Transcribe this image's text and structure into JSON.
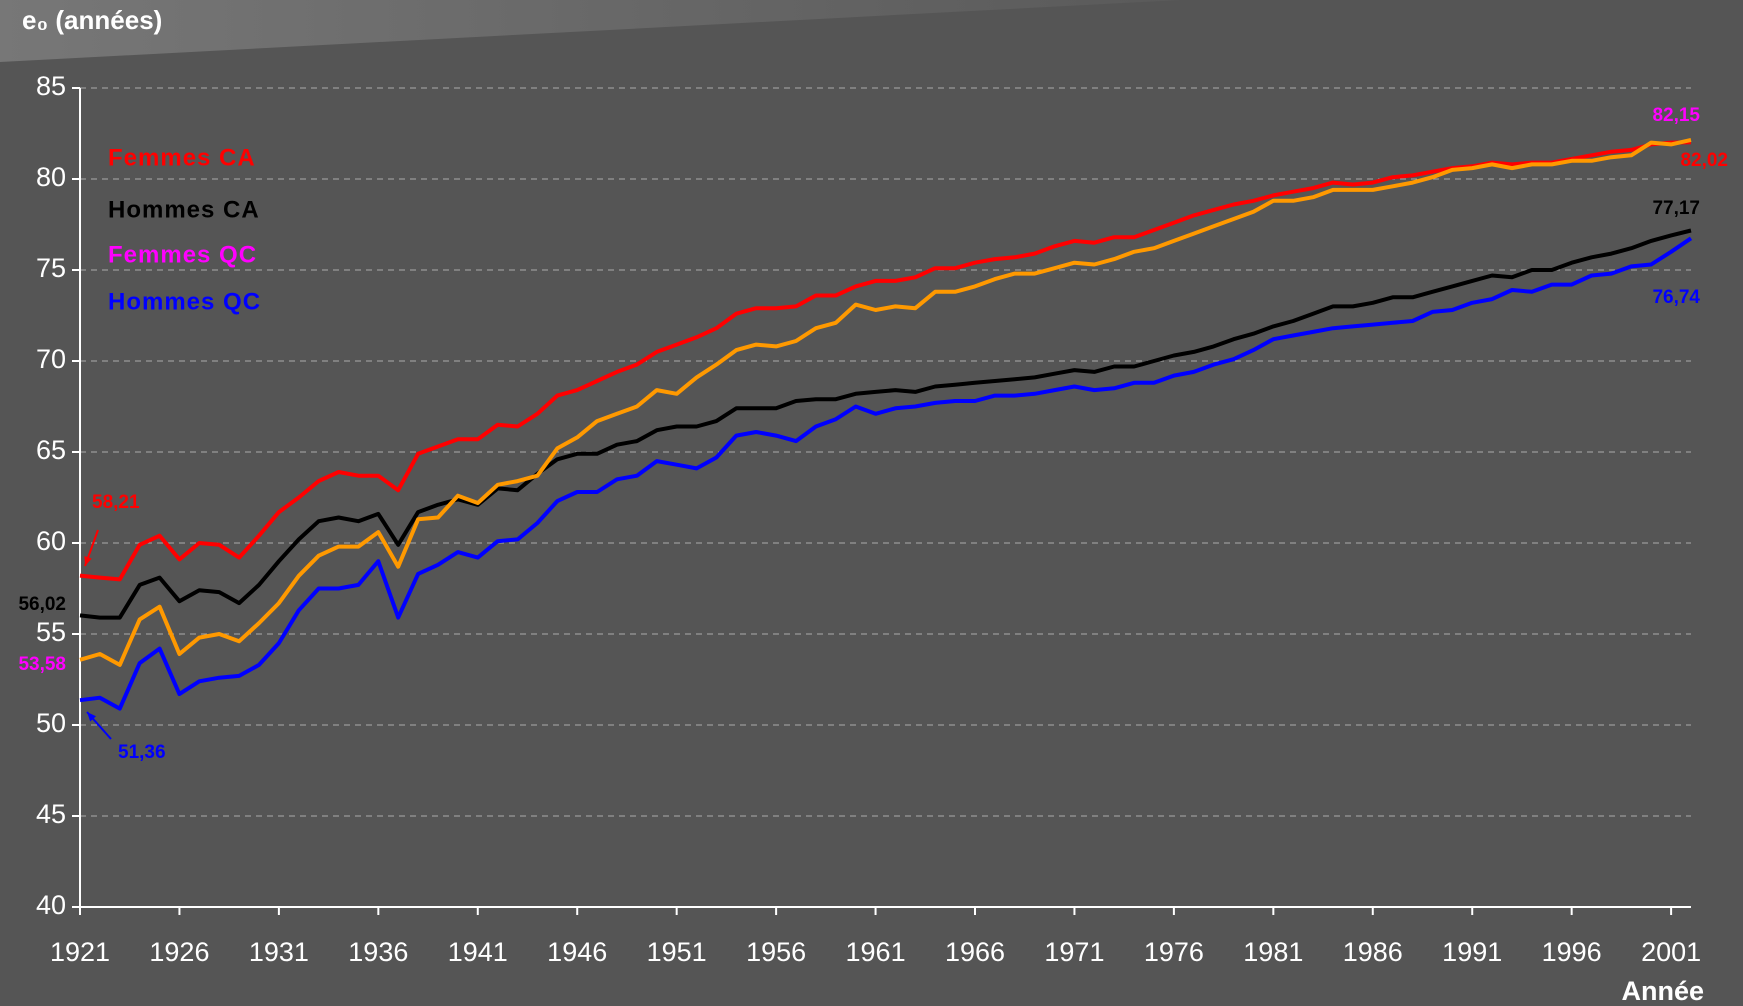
{
  "chart_data": {
    "type": "line",
    "y_label": "e₀ (années)",
    "x_label": "Année",
    "x": [
      1921,
      1922,
      1923,
      1924,
      1925,
      1926,
      1927,
      1928,
      1929,
      1930,
      1931,
      1932,
      1933,
      1934,
      1935,
      1936,
      1937,
      1938,
      1939,
      1940,
      1941,
      1942,
      1943,
      1944,
      1945,
      1946,
      1947,
      1948,
      1949,
      1950,
      1951,
      1952,
      1953,
      1954,
      1955,
      1956,
      1957,
      1958,
      1959,
      1960,
      1961,
      1962,
      1963,
      1964,
      1965,
      1966,
      1967,
      1968,
      1969,
      1970,
      1971,
      1972,
      1973,
      1974,
      1975,
      1976,
      1977,
      1978,
      1979,
      1980,
      1981,
      1982,
      1983,
      1984,
      1985,
      1986,
      1987,
      1988,
      1989,
      1990,
      1991,
      1992,
      1993,
      1994,
      1995,
      1996,
      1997,
      1998,
      1999,
      2000,
      2001,
      2002
    ],
    "xlim": [
      1921,
      2002
    ],
    "xticks": [
      1921,
      1926,
      1931,
      1936,
      1941,
      1946,
      1951,
      1956,
      1961,
      1966,
      1971,
      1976,
      1981,
      1986,
      1991,
      1996,
      2001
    ],
    "ylim": [
      40,
      85
    ],
    "yticks": [
      40,
      45,
      50,
      55,
      60,
      65,
      70,
      75,
      80,
      85
    ],
    "grid": true,
    "series": [
      {
        "name": "Femmes CA",
        "color": "#ff0000",
        "label_color": "#ff0000",
        "values": [
          58.21,
          58.1,
          58.0,
          59.9,
          60.4,
          59.1,
          60.0,
          59.9,
          59.2,
          60.4,
          61.7,
          62.5,
          63.4,
          63.9,
          63.7,
          63.7,
          62.9,
          64.9,
          65.3,
          65.7,
          65.7,
          66.5,
          66.4,
          67.1,
          68.1,
          68.4,
          68.9,
          69.4,
          69.8,
          70.5,
          70.9,
          71.3,
          71.8,
          72.6,
          72.9,
          72.9,
          73.0,
          73.6,
          73.6,
          74.1,
          74.4,
          74.4,
          74.6,
          75.1,
          75.1,
          75.4,
          75.6,
          75.7,
          75.9,
          76.3,
          76.6,
          76.5,
          76.8,
          76.8,
          77.2,
          77.6,
          78.0,
          78.3,
          78.6,
          78.8,
          79.1,
          79.3,
          79.5,
          79.8,
          79.7,
          79.8,
          80.1,
          80.2,
          80.4,
          80.6,
          80.7,
          80.9,
          80.8,
          80.9,
          80.9,
          81.1,
          81.3,
          81.5,
          81.6,
          81.9,
          82.0,
          82.02
        ],
        "value_labels": [
          {
            "index": 0,
            "label": "58,21"
          },
          {
            "index": 81,
            "label": "82,02"
          }
        ]
      },
      {
        "name": "Hommes CA",
        "color": "#000000",
        "label_color": "#000000",
        "values": [
          56.02,
          55.9,
          55.9,
          57.7,
          58.1,
          56.8,
          57.4,
          57.3,
          56.7,
          57.7,
          59.0,
          60.2,
          61.2,
          61.4,
          61.2,
          61.6,
          59.9,
          61.7,
          62.1,
          62.4,
          62.1,
          63.0,
          62.9,
          63.8,
          64.6,
          64.9,
          64.9,
          65.4,
          65.6,
          66.2,
          66.4,
          66.4,
          66.7,
          67.4,
          67.4,
          67.4,
          67.8,
          67.9,
          67.9,
          68.2,
          68.3,
          68.4,
          68.3,
          68.6,
          68.7,
          68.8,
          68.9,
          69.0,
          69.1,
          69.3,
          69.5,
          69.4,
          69.7,
          69.7,
          70.0,
          70.3,
          70.5,
          70.8,
          71.2,
          71.5,
          71.9,
          72.2,
          72.6,
          73.0,
          73.0,
          73.2,
          73.5,
          73.5,
          73.8,
          74.1,
          74.4,
          74.7,
          74.6,
          75.0,
          75.0,
          75.4,
          75.7,
          75.9,
          76.2,
          76.6,
          76.9,
          77.17
        ],
        "value_labels": [
          {
            "index": 0,
            "label": "56,02"
          },
          {
            "index": 81,
            "label": "77,17"
          }
        ]
      },
      {
        "name": "Femmes QC",
        "color": "#ff9900",
        "label_color": "#ff00ff",
        "values": [
          53.58,
          53.9,
          53.3,
          55.8,
          56.5,
          53.9,
          54.8,
          55.0,
          54.6,
          55.6,
          56.7,
          58.2,
          59.3,
          59.8,
          59.8,
          60.6,
          58.7,
          61.3,
          61.4,
          62.6,
          62.2,
          63.2,
          63.4,
          63.7,
          65.2,
          65.8,
          66.7,
          67.1,
          67.5,
          68.4,
          68.2,
          69.1,
          69.8,
          70.6,
          70.9,
          70.8,
          71.1,
          71.8,
          72.1,
          73.1,
          72.8,
          73.0,
          72.9,
          73.8,
          73.8,
          74.1,
          74.5,
          74.8,
          74.8,
          75.1,
          75.4,
          75.3,
          75.6,
          76.0,
          76.2,
          76.6,
          77.0,
          77.4,
          77.8,
          78.2,
          78.8,
          78.8,
          79.0,
          79.4,
          79.4,
          79.4,
          79.6,
          79.8,
          80.1,
          80.5,
          80.6,
          80.8,
          80.6,
          80.8,
          80.8,
          81.0,
          81.0,
          81.2,
          81.3,
          82.0,
          81.9,
          82.15
        ],
        "value_labels": [
          {
            "index": 0,
            "label": "53,58"
          },
          {
            "index": 81,
            "label": "82,15"
          }
        ]
      },
      {
        "name": "Hommes QC",
        "color": "#0000ff",
        "label_color": "#0000ff",
        "values": [
          51.36,
          51.5,
          50.9,
          53.4,
          54.2,
          51.7,
          52.4,
          52.6,
          52.7,
          53.3,
          54.5,
          56.3,
          57.5,
          57.5,
          57.7,
          59.0,
          55.9,
          58.3,
          58.8,
          59.5,
          59.2,
          60.1,
          60.2,
          61.1,
          62.3,
          62.8,
          62.8,
          63.5,
          63.7,
          64.5,
          64.3,
          64.1,
          64.7,
          65.9,
          66.1,
          65.9,
          65.6,
          66.4,
          66.8,
          67.5,
          67.1,
          67.4,
          67.5,
          67.7,
          67.8,
          67.8,
          68.1,
          68.1,
          68.2,
          68.4,
          68.6,
          68.4,
          68.5,
          68.8,
          68.8,
          69.2,
          69.4,
          69.8,
          70.1,
          70.6,
          71.2,
          71.4,
          71.6,
          71.8,
          71.9,
          72.0,
          72.1,
          72.2,
          72.7,
          72.8,
          73.2,
          73.4,
          73.9,
          73.8,
          74.2,
          74.2,
          74.7,
          74.8,
          75.2,
          75.3,
          76.0,
          76.74
        ],
        "value_labels": [
          {
            "index": 0,
            "label": "51,36"
          },
          {
            "index": 81,
            "label": "76,74"
          }
        ]
      }
    ]
  }
}
